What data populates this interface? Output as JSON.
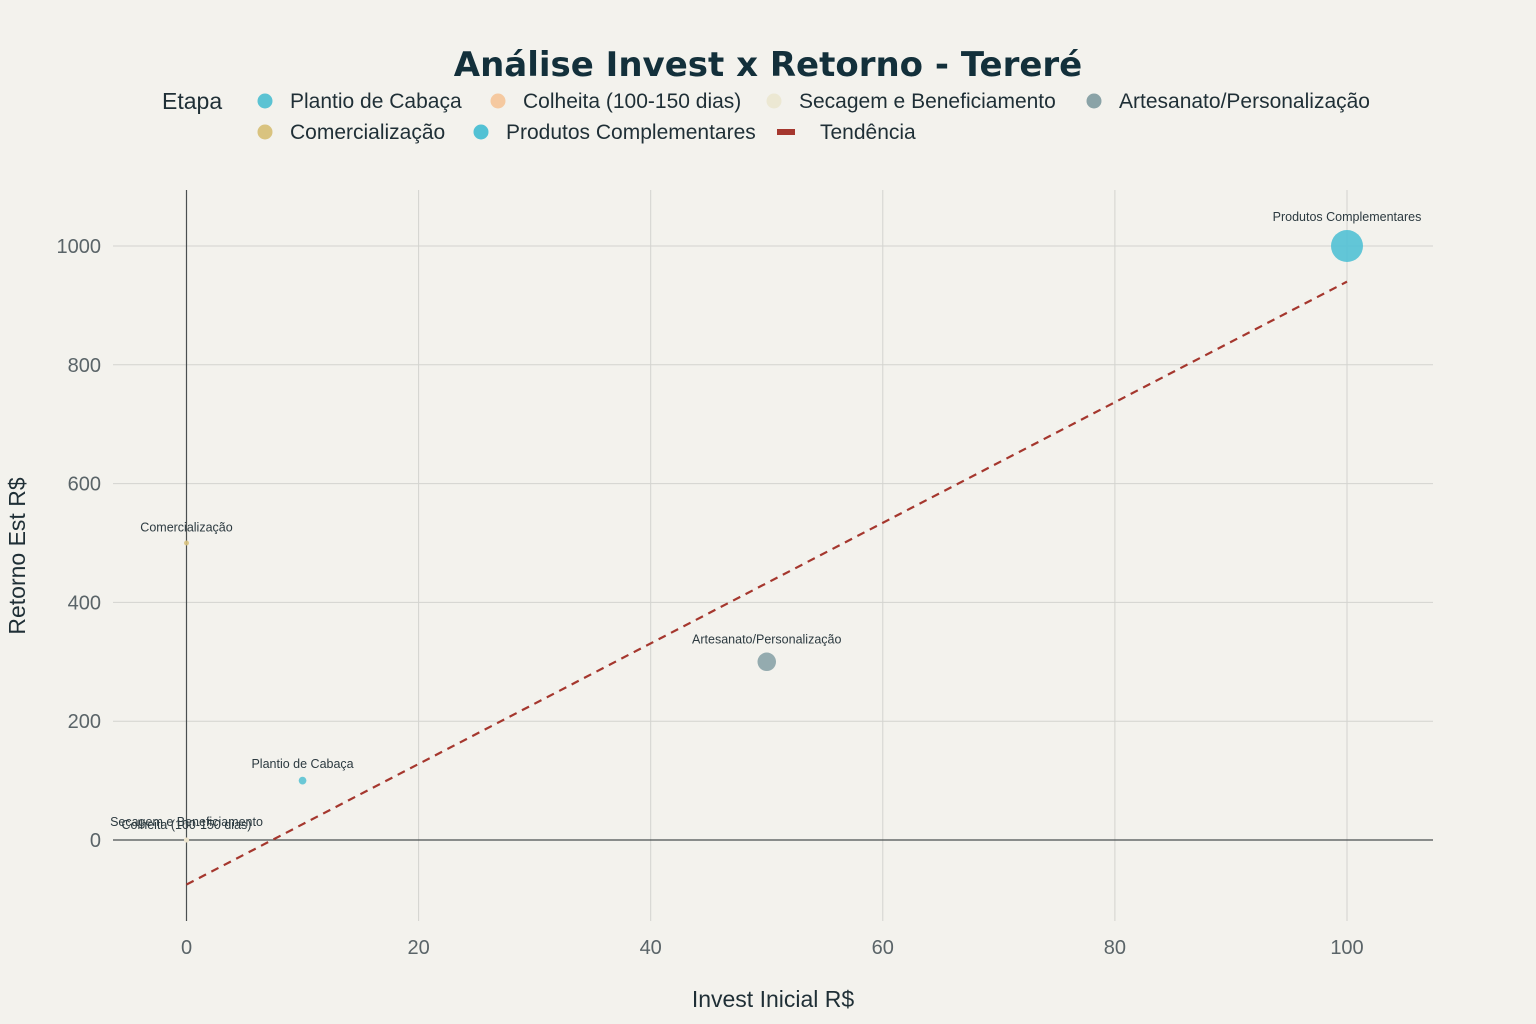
{
  "chart_data": {
    "type": "scatter",
    "title": "Análise Invest x Retorno - Tereré",
    "xlabel": "Invest Inicial R$",
    "ylabel": "Retorno Est R$",
    "xlim": [
      -6.5,
      107.5
    ],
    "ylim": [
      -140,
      1100
    ],
    "x_ticks": [
      0,
      20,
      40,
      60,
      80,
      100
    ],
    "y_ticks": [
      0,
      200,
      400,
      600,
      800,
      1000
    ],
    "grid": true,
    "legend": {
      "title": "Etapa",
      "placement": "top",
      "entries": [
        {
          "label": "Plantio de Cabaça",
          "color": "#5bc3d3",
          "marker": "circle"
        },
        {
          "label": "Colheita (100-150 dias)",
          "color": "#f5c9a0",
          "marker": "circle"
        },
        {
          "label": "Secagem e Beneficiamento",
          "color": "#ece8d3",
          "marker": "circle"
        },
        {
          "label": "Artesanato/Personalização",
          "color": "#8aa3a7",
          "marker": "circle"
        },
        {
          "label": "Comercialização",
          "color": "#d9c37f",
          "marker": "circle"
        },
        {
          "label": "Produtos Complementares",
          "color": "#52c1d4",
          "marker": "circle"
        },
        {
          "label": "Tendência",
          "color": "#a5372e",
          "marker": "line"
        }
      ]
    },
    "series": [
      {
        "name": "Plantio de Cabaça",
        "color": "#5bc3d3",
        "points": [
          {
            "x": 10,
            "y": 100,
            "size": 10
          }
        ],
        "label": "Plantio de Cabaça"
      },
      {
        "name": "Colheita (100-150 dias)",
        "color": "#f5c9a0",
        "points": [
          {
            "x": 0,
            "y": 0,
            "size": 0
          }
        ],
        "label": "Colheita (100-150 dias)"
      },
      {
        "name": "Secagem e Beneficiamento",
        "color": "#ece8d3",
        "points": [
          {
            "x": 0,
            "y": 0,
            "size": 0
          }
        ],
        "label": "Secagem e Beneficiamento"
      },
      {
        "name": "Artesanato/Personalização",
        "color": "#8aa3a7",
        "points": [
          {
            "x": 50,
            "y": 300,
            "size": 50
          }
        ],
        "label": "Artesanato/Personalização"
      },
      {
        "name": "Comercialização",
        "color": "#d9c37f",
        "points": [
          {
            "x": 0,
            "y": 500,
            "size": 0
          }
        ],
        "label": "Comercialização"
      },
      {
        "name": "Produtos Complementares",
        "color": "#52c1d4",
        "points": [
          {
            "x": 100,
            "y": 1000,
            "size": 100
          }
        ],
        "label": "Produtos Complementares"
      }
    ],
    "trendline": {
      "name": "Tendência",
      "color": "#a5372e",
      "style": "dashed",
      "x": [
        0,
        100
      ],
      "y": [
        -75,
        940
      ]
    }
  }
}
